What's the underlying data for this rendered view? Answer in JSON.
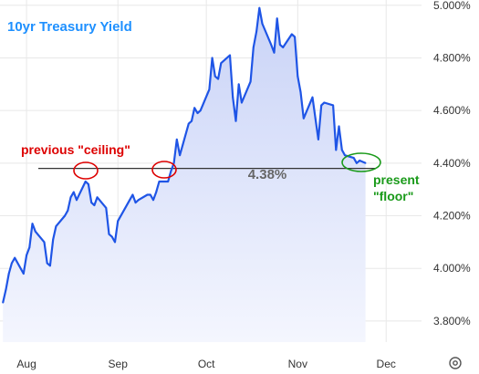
{
  "chart_data": {
    "type": "area",
    "title": "10yr Treasury Yield",
    "x_tick_labels": [
      "Aug",
      "Sep",
      "Oct",
      "Nov",
      "Dec"
    ],
    "x_tick_days": [
      0,
      31,
      61,
      92,
      122
    ],
    "y_tick_labels": [
      "3.800%",
      "4.000%",
      "4.200%",
      "4.400%",
      "4.600%",
      "4.800%",
      "5.000%"
    ],
    "y_tick_values": [
      3.8,
      4.0,
      4.2,
      4.4,
      4.6,
      4.8,
      5.0
    ],
    "ylim": [
      3.72,
      5.02
    ],
    "xlim": [
      -9,
      134
    ],
    "series": [
      {
        "x": [
          "2023-07-24",
          "2023-07-25",
          "2023-07-26",
          "2023-07-27",
          "2023-07-28",
          "2023-07-31",
          "2023-08-01",
          "2023-08-02",
          "2023-08-03",
          "2023-08-04",
          "2023-08-07",
          "2023-08-08",
          "2023-08-09",
          "2023-08-10",
          "2023-08-11",
          "2023-08-14",
          "2023-08-15",
          "2023-08-16",
          "2023-08-17",
          "2023-08-18",
          "2023-08-21",
          "2023-08-22",
          "2023-08-23",
          "2023-08-24",
          "2023-08-25",
          "2023-08-28",
          "2023-08-29",
          "2023-08-30",
          "2023-08-31",
          "2023-09-01",
          "2023-09-05",
          "2023-09-06",
          "2023-09-07",
          "2023-09-08",
          "2023-09-11",
          "2023-09-12",
          "2023-09-13",
          "2023-09-14",
          "2023-09-15",
          "2023-09-18",
          "2023-09-19",
          "2023-09-20",
          "2023-09-21",
          "2023-09-22",
          "2023-09-25",
          "2023-09-26",
          "2023-09-27",
          "2023-09-28",
          "2023-09-29",
          "2023-10-02",
          "2023-10-03",
          "2023-10-04",
          "2023-10-05",
          "2023-10-06",
          "2023-10-09",
          "2023-10-10",
          "2023-10-11",
          "2023-10-12",
          "2023-10-13",
          "2023-10-16",
          "2023-10-17",
          "2023-10-18",
          "2023-10-19",
          "2023-10-20",
          "2023-10-23",
          "2023-10-24",
          "2023-10-25",
          "2023-10-26",
          "2023-10-27",
          "2023-10-30",
          "2023-10-31",
          "2023-11-01",
          "2023-11-02",
          "2023-11-03",
          "2023-11-06",
          "2023-11-07",
          "2023-11-08",
          "2023-11-09",
          "2023-11-10",
          "2023-11-13",
          "2023-11-14",
          "2023-11-15",
          "2023-11-16",
          "2023-11-17",
          "2023-11-20",
          "2023-11-21",
          "2023-11-22",
          "2023-11-24"
        ],
        "y": [
          3.87,
          3.92,
          3.98,
          4.02,
          4.04,
          3.98,
          4.05,
          4.08,
          4.17,
          4.14,
          4.1,
          4.02,
          4.01,
          4.11,
          4.16,
          4.2,
          4.22,
          4.27,
          4.29,
          4.26,
          4.33,
          4.32,
          4.25,
          4.24,
          4.27,
          4.23,
          4.13,
          4.12,
          4.1,
          4.18,
          4.26,
          4.28,
          4.25,
          4.26,
          4.28,
          4.28,
          4.26,
          4.29,
          4.33,
          4.33,
          4.37,
          4.4,
          4.49,
          4.43,
          4.55,
          4.56,
          4.61,
          4.59,
          4.6,
          4.68,
          4.8,
          4.73,
          4.72,
          4.78,
          4.81,
          4.65,
          4.56,
          4.7,
          4.63,
          4.71,
          4.84,
          4.9,
          4.99,
          4.93,
          4.85,
          4.82,
          4.95,
          4.85,
          4.84,
          4.89,
          4.88,
          4.73,
          4.67,
          4.57,
          4.65,
          4.57,
          4.49,
          4.62,
          4.63,
          4.62,
          4.45,
          4.54,
          4.45,
          4.43,
          4.42,
          4.4,
          4.41,
          4.4
        ]
      }
    ],
    "reference_line": {
      "value": 4.38,
      "label": "4.38%"
    },
    "annotations": [
      {
        "text": "previous \"ceiling\"",
        "color": "#dd0000"
      },
      {
        "text_lines": [
          "present",
          "\"floor\""
        ],
        "color": "#1a9a1a"
      }
    ],
    "grid": true,
    "colors": {
      "line": "#1f55e6",
      "fill_top": "#c9d3f7",
      "fill_bottom": "#f4f6fe",
      "title": "#1e90ff",
      "ceiling": "#dd0000",
      "floor": "#1a9a1a",
      "reference": "#333333",
      "reference_label": "#666666",
      "grid": "#e8e8e8"
    }
  }
}
